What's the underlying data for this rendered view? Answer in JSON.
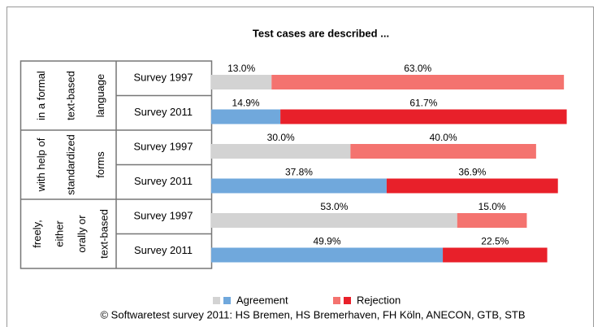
{
  "chart_data": {
    "type": "stacked-bar-horizontal",
    "title": "Test cases are described ...",
    "groups": [
      {
        "lines": [
          "in a formal",
          "text-based",
          "language"
        ]
      },
      {
        "lines": [
          "with help of",
          "standardized",
          "forms"
        ]
      },
      {
        "lines": [
          "freely,",
          "either",
          "orally or",
          "text-based"
        ]
      }
    ],
    "categories": [
      "Survey 1997",
      "Survey 2011",
      "Survey 1997",
      "Survey 2011",
      "Survey 1997",
      "Survey 2011"
    ],
    "series": [
      {
        "name": "Agreement",
        "colors": [
          "#d3d3d3",
          "#70a8dc"
        ],
        "values": [
          13.0,
          14.9,
          30.0,
          37.8,
          53.0,
          49.9
        ],
        "value_labels": [
          "13.0%",
          "14.9%",
          "30.0%",
          "37.8%",
          "53.0%",
          "49.9%"
        ]
      },
      {
        "name": "Rejection",
        "colors": [
          "#f4736f",
          "#e8202a"
        ],
        "values": [
          63.0,
          61.7,
          40.0,
          36.9,
          15.0,
          22.5
        ],
        "value_labels": [
          "63.0%",
          "61.7%",
          "40.0%",
          "36.9%",
          "15.0%",
          "22.5%"
        ]
      }
    ],
    "xlim": [
      0,
      80
    ],
    "footer": "© Softwaretest survey 2011: HS Bremen, HS Bremerhaven, FH Köln, ANECON, GTB, STB"
  }
}
